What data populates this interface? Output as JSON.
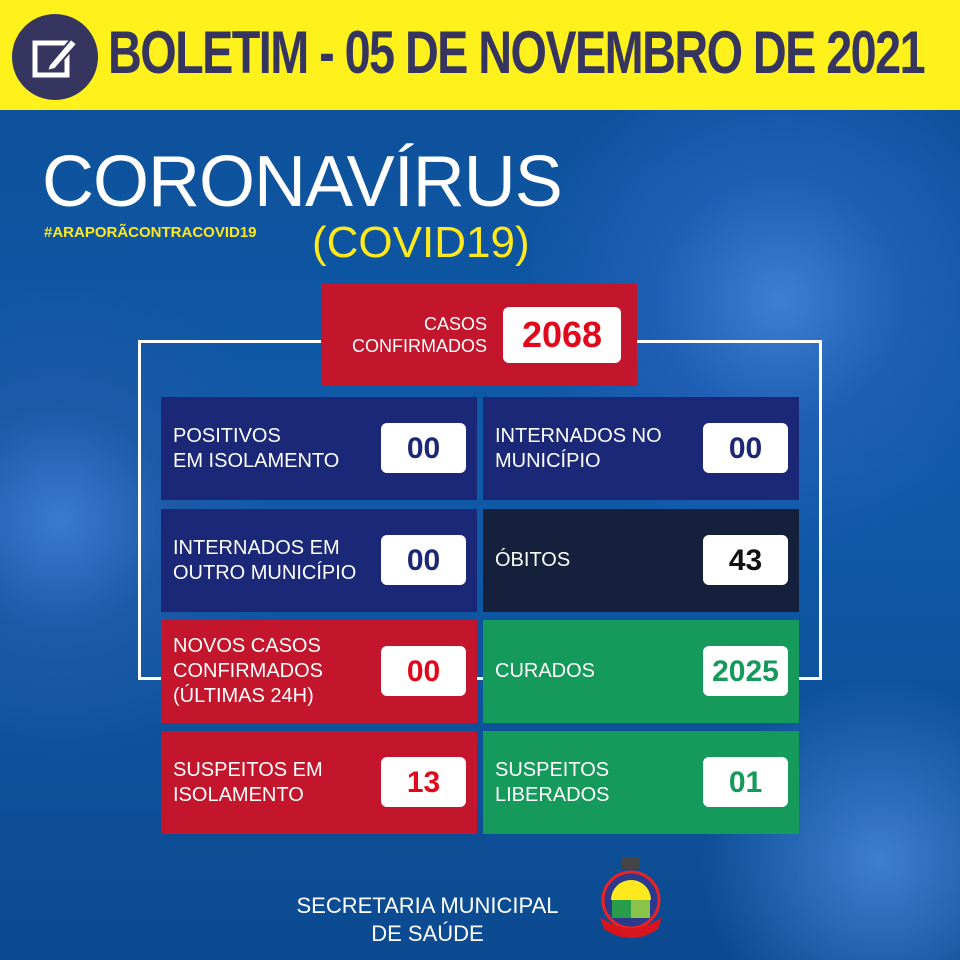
{
  "header": {
    "title": "BOLETIM - 05 DE NOVEMBRO DE 2021",
    "icon": "edit-icon"
  },
  "hero": {
    "title": "CORONAVÍRUS",
    "subtitle": "(COVID19)",
    "hashtag": "#ARAPORÃCONTRACOVID19"
  },
  "confirmed": {
    "label_line1": "CASOS",
    "label_line2": "CONFIRMADOS",
    "value": "2068"
  },
  "cells": [
    {
      "line1": "POSITIVOS",
      "line2": "EM ISOLAMENTO",
      "line3": "",
      "value": "00"
    },
    {
      "line1": "INTERNADOS NO",
      "line2": "MUNICÍPIO",
      "line3": "",
      "value": "00"
    },
    {
      "line1": "INTERNADOS EM",
      "line2": "OUTRO MUNICÍPIO",
      "line3": "",
      "value": "00"
    },
    {
      "line1": "ÓBITOS",
      "line2": "",
      "line3": "",
      "value": "43"
    },
    {
      "line1": "NOVOS CASOS",
      "line2": "CONFIRMADOS",
      "line3": "(ÚLTIMAS 24H)",
      "value": "00"
    },
    {
      "line1": "CURADOS",
      "line2": "",
      "line3": "",
      "value": "2025"
    },
    {
      "line1": "SUSPEITOS EM",
      "line2": "ISOLAMENTO",
      "line3": "",
      "value": "13"
    },
    {
      "line1": "SUSPEITOS",
      "line2": "LIBERADOS",
      "line3": "",
      "value": "01"
    }
  ],
  "colors": {
    "navy": "#1b2777",
    "dark": "#15213c",
    "red": "#c3162d",
    "green": "#159a5b",
    "yellow": "#fff21c"
  },
  "footer": {
    "line1": "SECRETARIA MUNICIPAL",
    "line2": "DE SAÚDE",
    "crest_text": "ARAPORÃ"
  }
}
